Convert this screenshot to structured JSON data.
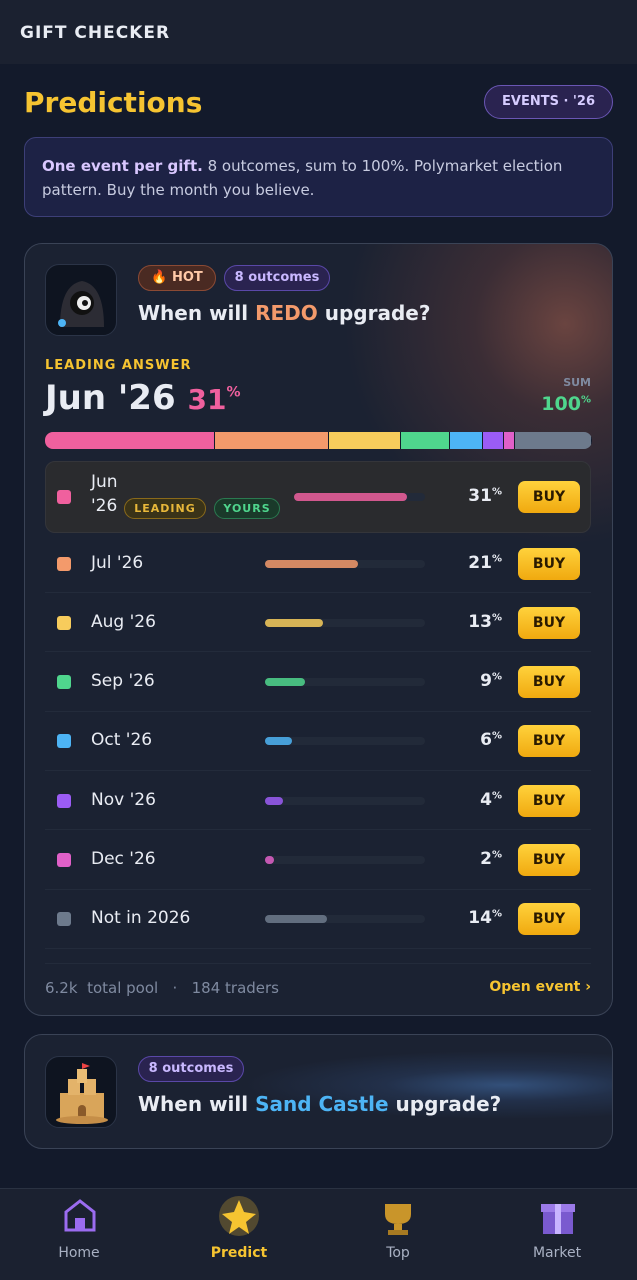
{
  "app_title": "GIFT CHECKER",
  "page": {
    "title": "Predictions",
    "badge": "EVENTS · '26"
  },
  "notice": {
    "bold": "One event per gift.",
    "text": "8 outcomes, sum to 100%. Polymarket election pattern. Buy the month you believe."
  },
  "event": {
    "hot": "HOT",
    "outcomes_badge": "8 outcomes",
    "title_prefix": "When will",
    "title_name": "REDO",
    "title_suffix": "upgrade?",
    "leading_label": "LEADING ANSWER",
    "sum_label": "SUM",
    "sum": 100,
    "unit": "%",
    "leading_tag": "LEADING",
    "yours_tag": "YOURS",
    "buy": "BUY",
    "outcomes": [
      {
        "label": "Jun '26",
        "value": 31,
        "color": "#f0609e"
      },
      {
        "label": "Jul '26",
        "value": 21,
        "color": "#f39a6b"
      },
      {
        "label": "Aug '26",
        "value": 13,
        "color": "#f7cc5c"
      },
      {
        "label": "Sep '26",
        "value": 9,
        "color": "#4fd68d"
      },
      {
        "label": "Oct '26",
        "value": 6,
        "color": "#4db4f5"
      },
      {
        "label": "Nov '26",
        "value": 4,
        "color": "#9b5cf5"
      },
      {
        "label": "Dec '26",
        "value": 2,
        "color": "#e060c8"
      },
      {
        "label": "Not in 2026",
        "value": 14,
        "color": "#6d7a8c"
      }
    ],
    "pool": "6.2k",
    "pool_label": "total pool",
    "separator": "·",
    "traders": "184 traders",
    "open": "Open event ›"
  },
  "event2": {
    "outcomes_badge": "8 outcomes",
    "title_prefix": "When will",
    "title_name": "Sand Castle",
    "title_suffix": "upgrade?"
  },
  "nav": [
    "Home",
    "Predict",
    "Top",
    "Market"
  ]
}
